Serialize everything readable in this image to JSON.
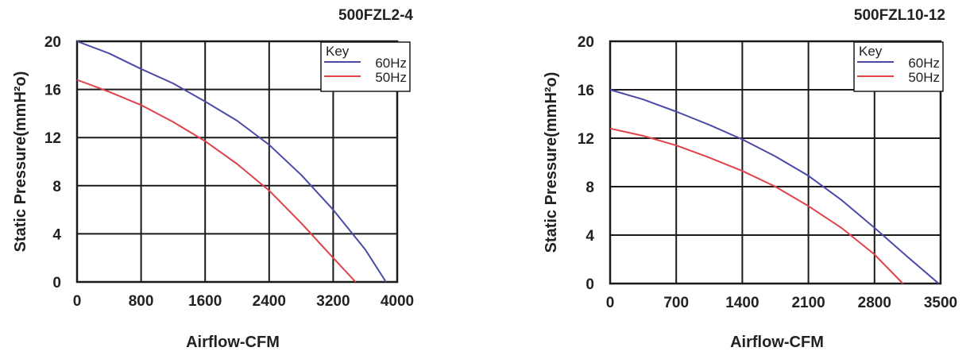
{
  "chart_data": [
    {
      "type": "line",
      "title": "500FZL2-4",
      "xlabel": "Airflow-CFM",
      "ylabel": "Static Pressure(mmH²o)",
      "xlim": [
        0,
        4000
      ],
      "ylim": [
        0,
        20
      ],
      "xticks": [
        0,
        800,
        1600,
        2400,
        3200,
        4000
      ],
      "yticks": [
        0,
        4,
        8,
        12,
        16,
        20
      ],
      "grid": true,
      "legend": {
        "title": "Key",
        "position": "top-right"
      },
      "series": [
        {
          "name": "60Hz",
          "color": "#4a4aa8",
          "x": [
            0,
            400,
            800,
            1200,
            1600,
            2000,
            2400,
            2800,
            3200,
            3600,
            3860
          ],
          "y": [
            20.0,
            19.0,
            17.7,
            16.5,
            15.0,
            13.4,
            11.4,
            8.9,
            6.0,
            2.7,
            0.0
          ]
        },
        {
          "name": "50Hz",
          "color": "#e0424a",
          "x": [
            0,
            400,
            800,
            1200,
            1600,
            2000,
            2400,
            2800,
            3200,
            3480
          ],
          "y": [
            16.8,
            15.8,
            14.7,
            13.3,
            11.7,
            9.8,
            7.6,
            4.9,
            2.0,
            0.0
          ]
        }
      ]
    },
    {
      "type": "line",
      "title": "500FZL10-12",
      "xlabel": "Airflow-CFM",
      "ylabel": "Static Pressure(mmH²o)",
      "xlim": [
        0,
        3500
      ],
      "ylim": [
        0,
        20
      ],
      "xticks": [
        0,
        700,
        1400,
        2100,
        2800,
        3500
      ],
      "yticks": [
        0,
        4,
        8,
        12,
        16,
        20
      ],
      "grid": true,
      "legend": {
        "title": "Key",
        "position": "top-right"
      },
      "series": [
        {
          "name": "60Hz",
          "color": "#4a4aa8",
          "x": [
            0,
            350,
            700,
            1050,
            1400,
            1750,
            2100,
            2450,
            2800,
            3150,
            3480
          ],
          "y": [
            16.0,
            15.2,
            14.2,
            13.1,
            11.9,
            10.5,
            8.9,
            6.9,
            4.6,
            2.2,
            0.0
          ]
        },
        {
          "name": "50Hz",
          "color": "#e0424a",
          "x": [
            0,
            350,
            700,
            1050,
            1400,
            1750,
            2100,
            2450,
            2800,
            3100
          ],
          "y": [
            12.8,
            12.2,
            11.4,
            10.4,
            9.3,
            8.0,
            6.4,
            4.6,
            2.4,
            0.0
          ]
        }
      ]
    }
  ]
}
